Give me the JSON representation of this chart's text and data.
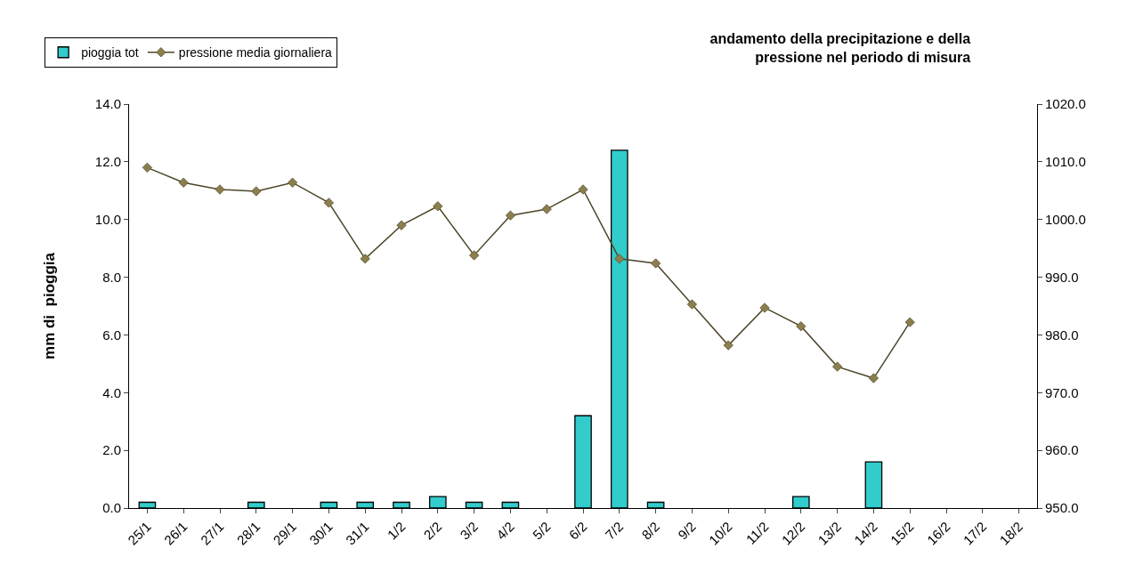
{
  "chart_data": {
    "type": "bar",
    "title": "andamento della precipitazione e della\npressione nel periodo di misura",
    "ylabel": "mm di  pioggia",
    "categories": [
      "25/1",
      "26/1",
      "27/1",
      "28/1",
      "29/1",
      "30/1",
      "31/1",
      "1/2",
      "2/2",
      "3/2",
      "4/2",
      "5/2",
      "6/2",
      "7/2",
      "8/2",
      "9/2",
      "10/2",
      "11/2",
      "12/2",
      "13/2",
      "14/2",
      "15/2",
      "16/2",
      "17/2",
      "18/2"
    ],
    "series": [
      {
        "name": "pioggia tot",
        "color": "#33cccc",
        "values": [
          0.2,
          null,
          null,
          0.2,
          null,
          0.2,
          0.2,
          0.2,
          0.4,
          0.2,
          0.2,
          null,
          3.2,
          12.4,
          0.2,
          null,
          null,
          null,
          0.4,
          null,
          1.6,
          null,
          null,
          null,
          null
        ]
      },
      {
        "name": "pressione media giornaliera",
        "type": "line",
        "axis": "y2",
        "color": "#8c7f4e",
        "marker": "diamond",
        "line_style": "solid",
        "values": [
          1009.0,
          1006.4,
          1005.2,
          1004.9,
          1006.4,
          1002.9,
          993.2,
          999.0,
          1002.3,
          993.8,
          1000.7,
          1001.8,
          1005.2,
          993.2,
          992.4,
          985.3,
          978.2,
          984.7,
          981.5,
          974.5,
          972.5,
          982.2,
          null,
          null,
          null
        ]
      }
    ],
    "ylim": [
      0,
      14
    ],
    "yticks": [
      {
        "value": 0,
        "label": "0.0"
      },
      {
        "value": 2,
        "label": "2.0"
      },
      {
        "value": 4,
        "label": "4.0"
      },
      {
        "value": 6,
        "label": "6.0"
      },
      {
        "value": 8,
        "label": "8.0"
      },
      {
        "value": 10,
        "label": "10.0"
      },
      {
        "value": 12,
        "label": "12.0"
      },
      {
        "value": 14,
        "label": "14.0"
      }
    ],
    "y2lim": [
      950,
      1020
    ],
    "y2ticks": [
      {
        "value": 950,
        "label": "950.0"
      },
      {
        "value": 960,
        "label": "960.0"
      },
      {
        "value": 970,
        "label": "970.0"
      },
      {
        "value": 980,
        "label": "980.0"
      },
      {
        "value": 990,
        "label": "990.0"
      },
      {
        "value": 1000,
        "label": "1000.0"
      },
      {
        "value": 1010,
        "label": "1010.0"
      },
      {
        "value": 1020,
        "label": "1020.0"
      }
    ],
    "grid": false,
    "legend": "top left"
  }
}
